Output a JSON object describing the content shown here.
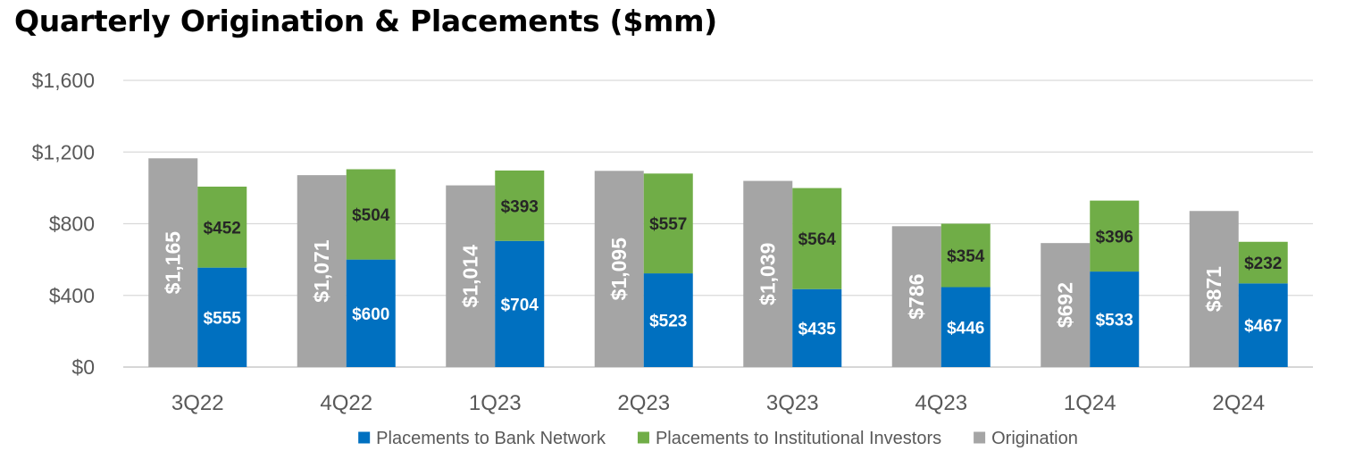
{
  "chart_data": {
    "type": "bar",
    "title": "Quarterly Origination & Placements ($mm)",
    "categories": [
      "3Q22",
      "4Q22",
      "1Q23",
      "2Q23",
      "3Q23",
      "4Q23",
      "1Q24",
      "2Q24"
    ],
    "ylim": [
      0,
      1600
    ],
    "yticks": [
      0,
      400,
      800,
      1200,
      1600
    ],
    "ytick_labels": [
      "$0",
      "$400",
      "$800",
      "$1,200",
      "$1,600"
    ],
    "grid": true,
    "legend": "bottom",
    "series": [
      {
        "name": "Placements to Bank Network",
        "color": "#0070C0",
        "stack": "placements",
        "values": [
          555,
          600,
          704,
          523,
          435,
          446,
          533,
          467
        ],
        "labels": [
          "$555",
          "$600",
          "$704",
          "$523",
          "$435",
          "$446",
          "$533",
          "$467"
        ]
      },
      {
        "name": "Placements to Institutional Investors",
        "color": "#70AD47",
        "stack": "placements",
        "values": [
          452,
          504,
          393,
          557,
          564,
          354,
          396,
          232
        ],
        "labels": [
          "$452",
          "$504",
          "$393",
          "$557",
          "$564",
          "$354",
          "$396",
          "$232"
        ]
      },
      {
        "name": "Origination",
        "color": "#A5A5A5",
        "stack": "origination",
        "values": [
          1165,
          1071,
          1014,
          1095,
          1039,
          786,
          692,
          871
        ],
        "labels": [
          "$1,165",
          "$1,071",
          "$1,014",
          "$1,095",
          "$1,039",
          "$786",
          "$692",
          "$871"
        ]
      }
    ]
  }
}
